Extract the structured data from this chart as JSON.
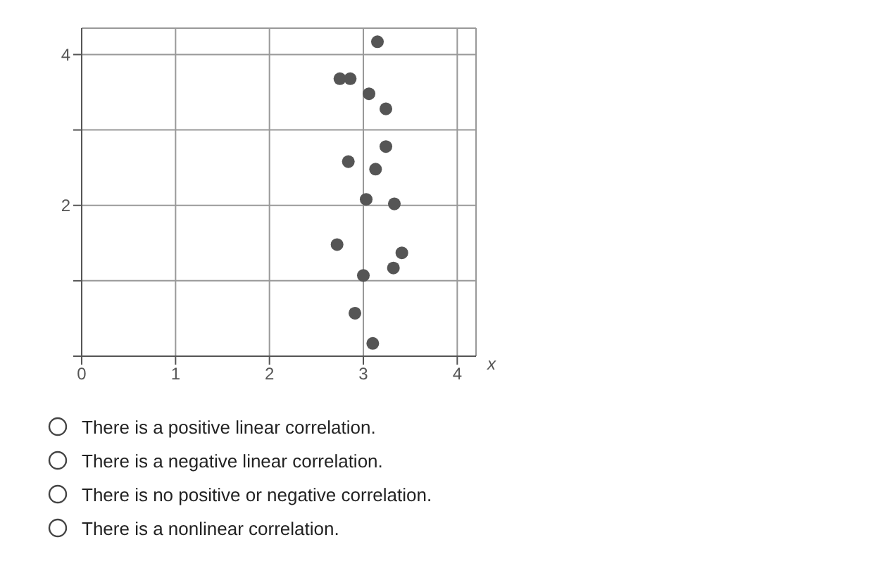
{
  "chart_data": {
    "type": "scatter",
    "xlabel": "x",
    "x": [
      3.15,
      2.75,
      2.86,
      3.06,
      3.24,
      3.24,
      2.84,
      3.13,
      3.03,
      3.33,
      2.72,
      3.41,
      3.32,
      3.0,
      2.91,
      3.1
    ],
    "values": [
      4.17,
      3.68,
      3.68,
      3.48,
      3.28,
      2.78,
      2.58,
      2.48,
      2.08,
      2.02,
      1.48,
      1.37,
      1.17,
      1.07,
      0.57,
      0.17
    ],
    "color": "#555555",
    "marker": "circle",
    "grid": true,
    "xlim": [
      0,
      4.2
    ],
    "xticks": [
      0,
      1,
      2,
      3,
      4
    ],
    "ylim": [
      0,
      4.35
    ],
    "yticks": [
      {
        "value": 0,
        "label": null
      },
      {
        "value": 1,
        "label": null
      },
      2,
      {
        "value": 3,
        "label": null
      },
      4
    ],
    "annotations": [
      "There is a positive linear correlation.",
      "There is a negative linear correlation.",
      "There is no positive or negative correlation.",
      "There is a nonlinear correlation."
    ]
  }
}
